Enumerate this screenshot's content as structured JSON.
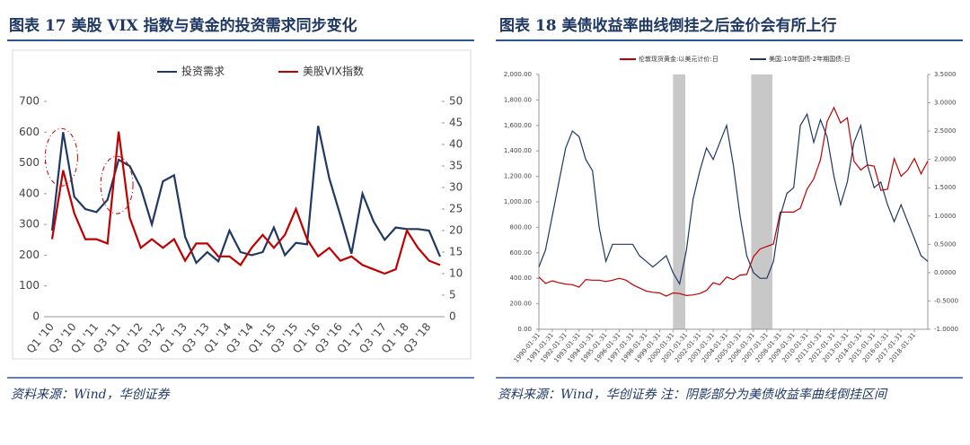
{
  "chart_data": [
    {
      "type": "line",
      "title": "图表 17  美股 VIX 指数与黄金的投资需求同步变化",
      "source": "资料来源：Wind，华创证券",
      "categories": [
        "Q1 '10",
        null,
        "Q3 '10",
        null,
        "Q1 '11",
        null,
        "Q3 '11",
        null,
        "Q1 '12",
        null,
        "Q3 '12",
        null,
        "Q1 '13",
        null,
        "Q3 '13",
        null,
        "Q1 '14",
        null,
        "Q3 '14",
        null,
        "Q1 '15",
        null,
        "Q3 '15",
        null,
        "Q1 '16",
        null,
        "Q3 '16",
        null,
        "Q1 '17",
        null,
        "Q3 '17",
        null,
        "Q1 '18",
        null,
        "Q3 '18",
        null
      ],
      "series": [
        {
          "name": "投资需求",
          "color": "#1f3864",
          "axis": "y",
          "values": [
            280,
            600,
            390,
            350,
            340,
            380,
            510,
            490,
            420,
            300,
            440,
            460,
            260,
            175,
            210,
            180,
            280,
            210,
            200,
            210,
            290,
            200,
            240,
            235,
            620,
            450,
            330,
            205,
            400,
            310,
            250,
            290,
            285,
            285,
            280,
            195
          ]
        },
        {
          "name": "美股VIX指数",
          "color": "#c00000",
          "axis": "y2",
          "values": [
            18,
            34,
            24,
            18,
            18,
            17,
            43,
            23,
            16,
            18,
            16,
            18,
            13,
            17,
            17,
            14,
            14,
            12,
            16,
            19,
            16,
            19,
            25,
            18,
            14,
            16,
            13,
            14,
            12,
            11,
            10,
            11,
            20,
            16,
            13,
            12
          ]
        }
      ],
      "ylim": [
        0,
        700
      ],
      "yticks": [
        0,
        100,
        200,
        300,
        400,
        500,
        600,
        700
      ],
      "y2lim": [
        0,
        50
      ],
      "y2ticks": [
        0,
        5,
        10,
        15,
        20,
        25,
        30,
        35,
        40,
        45,
        50
      ],
      "legend": "top"
    },
    {
      "type": "line",
      "title": "图表 18  美债收益率曲线倒挂之后金价会有所上行",
      "source": "资料来源：Wind，华创证券  注：阴影部分为美债收益率曲线倒挂区间",
      "x": [
        "1990-01-31",
        "1990-07-31",
        "1991-01-31",
        "1991-07-31",
        "1992-01-31",
        "1992-07-31",
        "1993-01-31",
        "1993-07-31",
        "1994-01-31",
        "1994-07-31",
        "1995-01-31",
        "1995-07-31",
        "1996-01-31",
        "1996-07-31",
        "1997-01-31",
        "1997-07-31",
        "1998-01-31",
        "1998-07-31",
        "1999-01-31",
        "1999-07-31",
        "2000-01-31",
        "2000-07-31",
        "2001-01-31",
        "2001-07-31",
        "2002-01-31",
        "2002-07-31",
        "2003-01-31",
        "2003-07-31",
        "2004-01-31",
        "2004-07-31",
        "2005-01-31",
        "2005-07-31",
        "2006-01-31",
        "2006-07-31",
        "2007-01-31",
        "2007-07-31",
        "2008-01-31",
        "2008-07-31",
        "2009-01-31",
        "2009-07-31",
        "2010-01-31",
        "2010-07-31",
        "2011-01-31",
        "2011-07-31",
        "2012-01-31",
        "2012-07-31",
        "2013-01-31",
        "2013-07-31",
        "2014-01-31",
        "2014-07-31",
        "2015-01-31",
        "2015-07-31",
        "2016-01-31",
        "2016-07-31",
        "2017-01-31",
        "2017-07-31",
        "2018-01-31",
        "2018-07-31",
        "2019-01-31"
      ],
      "xticks": [
        "1990-01-31",
        "1991-01-31",
        "1992-01-31",
        "1993-01-31",
        "1994-01-31",
        "1995-01-31",
        "1996-01-31",
        "1997-01-31",
        "1998-01-31",
        "1999-01-31",
        "2000-01-31",
        "2001-01-31",
        "2002-01-31",
        "2003-01-31",
        "2004-01-31",
        "2005-01-31",
        "2006-01-31",
        "2007-01-31",
        "2008-01-31",
        "2009-01-31",
        "2010-01-31",
        "2011-01-31",
        "2012-01-31",
        "2013-01-31",
        "2014-01-31",
        "2015-01-31",
        "2016-01-31",
        "2017-01-31",
        "2018-01-31"
      ],
      "shaded_ranges": [
        [
          "2000-02-01",
          "2000-12-31"
        ],
        [
          "2005-12-01",
          "2007-06-30"
        ]
      ],
      "series": [
        {
          "name": "伦敦现货黄金:以美元计价:日",
          "color": "#c00000",
          "axis": "y",
          "values": [
            410,
            360,
            380,
            365,
            355,
            350,
            330,
            390,
            385,
            385,
            375,
            385,
            400,
            385,
            350,
            325,
            300,
            290,
            285,
            260,
            285,
            280,
            265,
            270,
            280,
            305,
            365,
            350,
            410,
            390,
            425,
            430,
            570,
            630,
            650,
            670,
            920,
            920,
            920,
            950,
            1100,
            1180,
            1330,
            1630,
            1740,
            1620,
            1660,
            1320,
            1250,
            1290,
            1280,
            1090,
            1100,
            1340,
            1200,
            1250,
            1340,
            1220,
            1320
          ]
        },
        {
          "name": "美国:10年国债-2年期国债:日",
          "color": "#1f3864",
          "axis": "y2",
          "values": [
            0.1,
            0.4,
            1.0,
            1.6,
            2.2,
            2.5,
            2.4,
            2.0,
            1.8,
            0.8,
            0.2,
            0.5,
            0.5,
            0.5,
            0.5,
            0.3,
            0.2,
            0.1,
            0.2,
            0.3,
            0.0,
            -0.2,
            0.4,
            1.3,
            1.8,
            2.2,
            2.0,
            2.3,
            2.6,
            1.9,
            1.0,
            0.3,
            0.0,
            -0.1,
            -0.1,
            0.2,
            1.0,
            1.4,
            1.5,
            2.6,
            2.8,
            2.3,
            2.7,
            2.4,
            1.7,
            1.2,
            1.6,
            2.3,
            2.6,
            1.9,
            1.5,
            1.6,
            1.2,
            0.9,
            1.2,
            0.9,
            0.6,
            0.3,
            0.2
          ]
        }
      ],
      "ylim": [
        0,
        2000
      ],
      "yticks": [
        {
          "value": 0,
          "label": "0.00"
        },
        {
          "value": 200,
          "label": "200.00"
        },
        {
          "value": 400,
          "label": "400.00"
        },
        {
          "value": 600,
          "label": "600.00"
        },
        {
          "value": 800,
          "label": "800.00"
        },
        {
          "value": 1000,
          "label": "1,000.00"
        },
        {
          "value": 1200,
          "label": "1,200.00"
        },
        {
          "value": 1400,
          "label": "1,400.00"
        },
        {
          "value": 1600,
          "label": "1,600.00"
        },
        {
          "value": 1800,
          "label": "1,800.00"
        },
        {
          "value": 2000,
          "label": "2,000.00"
        }
      ],
      "y2lim": [
        -1,
        3.5
      ],
      "y2ticks": [
        {
          "value": -1,
          "label": "-1.0000"
        },
        {
          "value": -0.5,
          "label": "-0.5000"
        },
        {
          "value": 0,
          "label": "0.0000"
        },
        {
          "value": 0.5,
          "label": "0.5000"
        },
        {
          "value": 1,
          "label": "1.0000"
        },
        {
          "value": 1.5,
          "label": "1.5000"
        },
        {
          "value": 2,
          "label": "2.0000"
        },
        {
          "value": 2.5,
          "label": "2.5000"
        },
        {
          "value": 3,
          "label": "3.0000"
        },
        {
          "value": 3.5,
          "label": "3.5000"
        }
      ],
      "legend": "top"
    }
  ]
}
